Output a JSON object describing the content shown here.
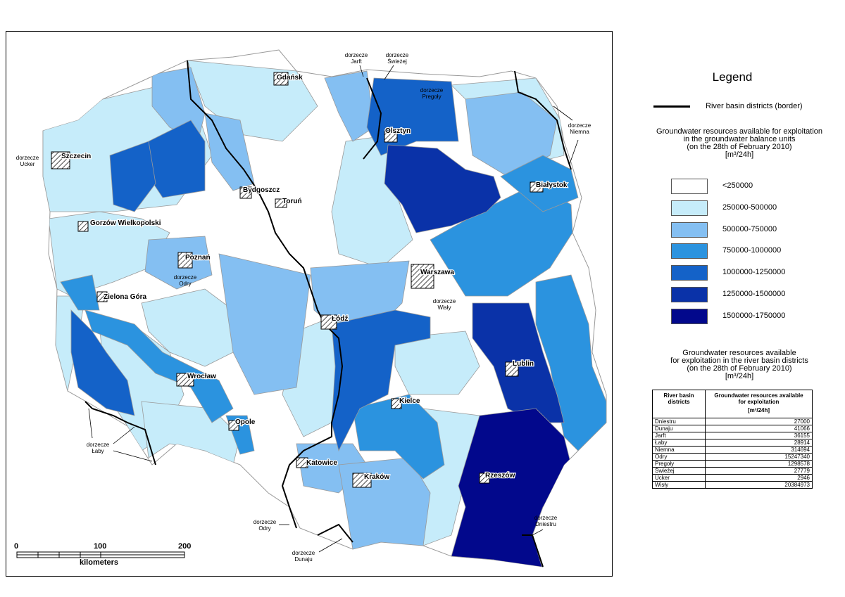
{
  "legend": {
    "title": "Legend",
    "border_label": "River basin districts (border)",
    "units_title_lines": [
      "Groundwater resources available for exploitation",
      "in the groundwater balance units",
      "(on the 28th of February 2010)",
      "[m³/24h]"
    ],
    "classes": [
      {
        "label": "<250000",
        "color": "#ffffff"
      },
      {
        "label": "250000-500000",
        "color": "#c6ecfa"
      },
      {
        "label": "500000-750000",
        "color": "#84bff2"
      },
      {
        "label": "750000-1000000",
        "color": "#2b93df"
      },
      {
        "label": "1000000-1250000",
        "color": "#1462c8"
      },
      {
        "label": "1250000-1500000",
        "color": "#0a32a8"
      },
      {
        "label": "1500000-1750000",
        "color": "#02088c"
      }
    ]
  },
  "districts": {
    "title_lines": [
      "Groundwater resources available",
      "for exploitation in the river basin districts",
      "(on the 28th of February 2010)",
      "[m³/24h]"
    ],
    "col_name": "River basin districts",
    "col_value_lines": [
      "Groundwater resources available",
      "for exploitation",
      "[m³/24h]"
    ],
    "rows": [
      {
        "name": "Dniestru",
        "value": "27000"
      },
      {
        "name": "Dunaju",
        "value": "41066"
      },
      {
        "name": "Jarft",
        "value": "36155"
      },
      {
        "name": "Łaby",
        "value": "28914"
      },
      {
        "name": "Niemna",
        "value": "314694"
      },
      {
        "name": "Odry",
        "value": "15247340"
      },
      {
        "name": "Pregoły",
        "value": "1298578"
      },
      {
        "name": "Świeżej",
        "value": "27779"
      },
      {
        "name": "Ucker",
        "value": "2946"
      },
      {
        "name": "Wisły",
        "value": "20384973"
      }
    ]
  },
  "cities": [
    "Gdańsk",
    "Olsztyn",
    "Szczecin",
    "Białystok",
    "Bydgoszcz",
    "Toruń",
    "Gorzów Wielkopolski",
    "Poznań",
    "Warszawa",
    "Zielona Góra",
    "Łódź",
    "Lublin",
    "Wrocław",
    "Kielce",
    "Opole",
    "Katowice",
    "Kraków",
    "Rzeszów"
  ],
  "basin_labels": {
    "jarft": [
      "dorzecze",
      "Jarft"
    ],
    "swiezej": [
      "dorzecze",
      "Świeżej"
    ],
    "pregoly": [
      "dorzecze",
      "Pregoły"
    ],
    "niemna": [
      "dorzecze",
      "Niemna"
    ],
    "ucker": [
      "dorzecze",
      "Ucker"
    ],
    "odry_upper": [
      "dorzecze",
      "Odry"
    ],
    "wisly": [
      "dorzecze",
      "Wisły"
    ],
    "laby": [
      "dorzecze",
      "Łaby"
    ],
    "odry_lower": [
      "dorzecze",
      "Odry"
    ],
    "dunaju": [
      "dorzecze",
      "Dunaju"
    ],
    "dniestru": [
      "dorzecze",
      "Dniestru"
    ]
  },
  "scale": {
    "ticks": [
      "0",
      "100",
      "200"
    ],
    "unit": "kilometers"
  }
}
